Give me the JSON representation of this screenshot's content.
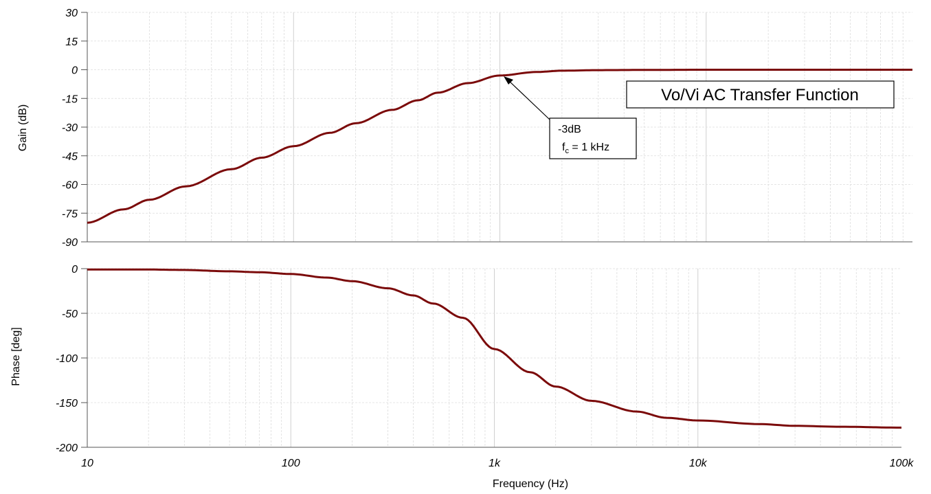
{
  "chart_data": [
    {
      "type": "line",
      "title": "Vo/Vi AC Transfer Function",
      "xlabel": "",
      "ylabel": "Gain (dB)",
      "x_scale": "log",
      "xlim": [
        10,
        100000
      ],
      "ylim": [
        -90,
        30
      ],
      "yticks": [
        "30",
        "15",
        "0",
        "-15",
        "-30",
        "-45",
        "-60",
        "-75",
        "-90"
      ],
      "grid": true,
      "annotation": {
        "line1": "-3dB",
        "line2_prefix": "f",
        "line2_sub": "c",
        "line2_suffix": " = 1 kHz",
        "point_x": 1000,
        "point_y": -3
      },
      "series": [
        {
          "color": "#7b0a0a",
          "x": [
            10,
            15,
            20,
            30,
            50,
            70,
            100,
            150,
            200,
            300,
            400,
            500,
            700,
            1000,
            1500,
            2000,
            3000,
            5000,
            10000,
            100000
          ],
          "y": [
            -80,
            -73,
            -68,
            -61,
            -52,
            -46,
            -40,
            -33,
            -28,
            -21,
            -16,
            -12,
            -7,
            -3,
            -1.2,
            -0.5,
            -0.2,
            -0.1,
            0,
            0
          ]
        }
      ]
    },
    {
      "type": "line",
      "xlabel": "Frequency (Hz)",
      "ylabel": "Phase [deg]",
      "x_scale": "log",
      "xlim": [
        10,
        100000
      ],
      "ylim": [
        -200,
        0
      ],
      "xticks": [
        "10",
        "100",
        "1k",
        "10k",
        "100k"
      ],
      "yticks": [
        "0",
        "-50",
        "-100",
        "-150",
        "-200"
      ],
      "grid": true,
      "series": [
        {
          "color": "#7b0a0a",
          "x": [
            10,
            20,
            30,
            50,
            70,
            100,
            150,
            200,
            300,
            400,
            500,
            700,
            1000,
            1500,
            2000,
            3000,
            5000,
            7000,
            10000,
            20000,
            30000,
            50000,
            100000
          ],
          "y": [
            -1,
            -1,
            -1.5,
            -3,
            -4,
            -6,
            -10,
            -14,
            -22,
            -30,
            -39,
            -55,
            -90,
            -116,
            -132,
            -148,
            -160,
            -167,
            -170,
            -174,
            -176,
            -177,
            -178
          ]
        }
      ]
    }
  ]
}
